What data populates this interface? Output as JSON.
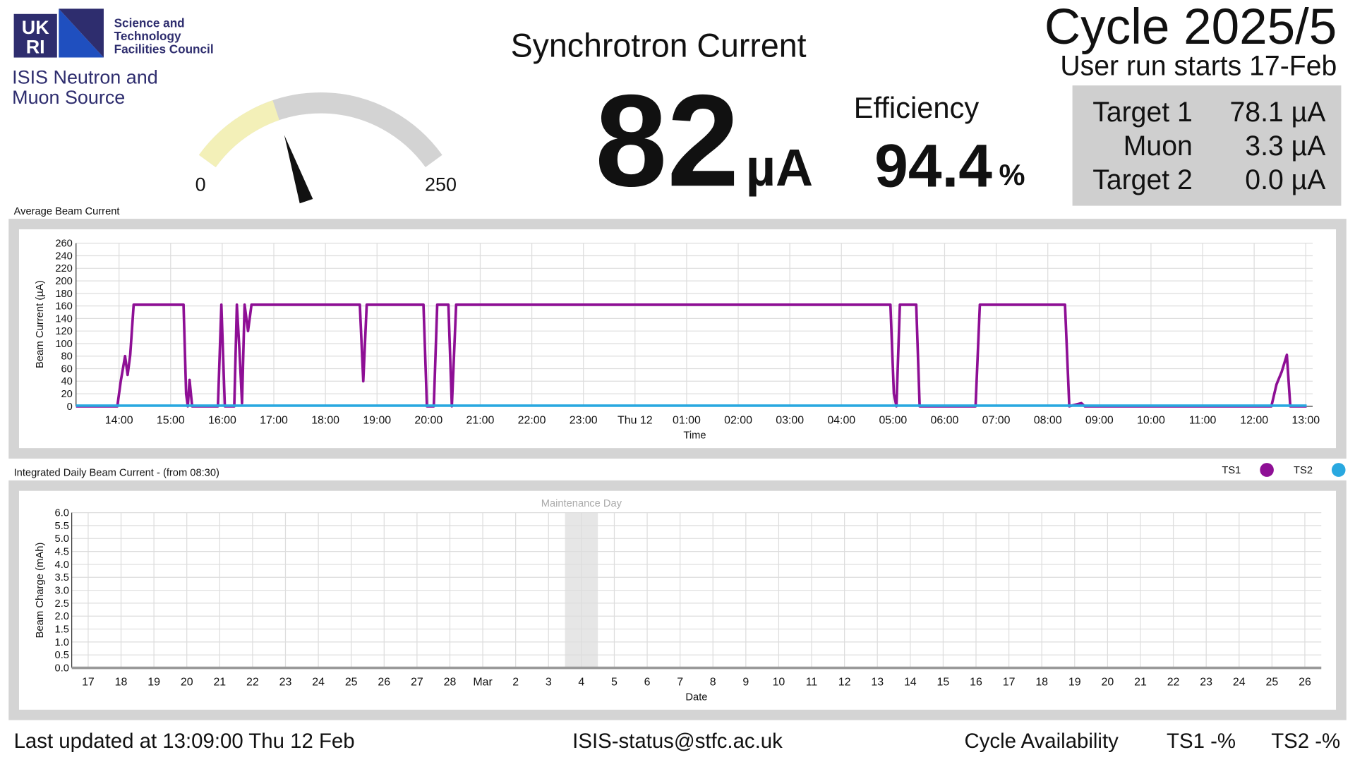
{
  "logo": {
    "mark_top": "UK",
    "mark_bottom": "RI",
    "council": [
      "Science and",
      "Technology",
      "Facilities Council"
    ],
    "source": [
      "ISIS Neutron and",
      "Muon Source"
    ]
  },
  "heading": "Synchrotron Current",
  "current": {
    "value": 82,
    "unit": "µA"
  },
  "gauge": {
    "min": 0,
    "max": 250
  },
  "efficiency": {
    "label": "Efficiency",
    "value": 94.4,
    "unit": "%"
  },
  "cycle": {
    "title": "Cycle 2025/5",
    "subtitle": "User run starts 17-Feb"
  },
  "targets": {
    "rows": [
      [
        "Target 1",
        "78.1 µA"
      ],
      [
        "Muon",
        "3.3 µA"
      ],
      [
        "Target 2",
        "0.0 µA"
      ]
    ]
  },
  "footer": {
    "updated": "Last updated at 13:09:00 Thu 12 Feb",
    "email": "ISIS-status@stfc.ac.uk",
    "availability": "Cycle Availability",
    "ts1": "TS1 -%",
    "ts2": "TS2 -%"
  },
  "chart_data": [
    {
      "type": "line",
      "title": "Average Beam Current",
      "x_label": "Time",
      "y_label": "Beam Current (µA)",
      "xlim": [
        "13:10",
        "13:08"
      ],
      "xticks": [
        "14:00",
        "15:00",
        "16:00",
        "17:00",
        "18:00",
        "19:00",
        "20:00",
        "21:00",
        "22:00",
        "23:00",
        {
          "value": "00:00",
          "label": "Thu 12"
        },
        "01:00",
        "02:00",
        "03:00",
        "04:00",
        "05:00",
        "06:00",
        "07:00",
        "08:00",
        "09:00",
        "10:00",
        "11:00",
        "12:00",
        "13:00"
      ],
      "ylim": [
        0,
        260
      ],
      "yticks": [
        0,
        20,
        40,
        60,
        80,
        100,
        120,
        140,
        160,
        180,
        200,
        220,
        240,
        260
      ],
      "grid": true,
      "series": [
        {
          "name": "TS1",
          "color": "#8e0f95",
          "x": [
            "13:10",
            "13:58",
            "14:02",
            "14:07",
            "14:10",
            "14:13",
            "14:17",
            "15:15",
            "15:18",
            "15:20",
            "15:22",
            "15:25",
            "15:55",
            "15:59",
            "16:03",
            "16:14",
            "16:17",
            "16:20",
            "16:23",
            "16:26",
            "16:30",
            "16:34",
            "16:42",
            "18:40",
            "18:44",
            "18:48",
            "19:54",
            "19:58",
            "20:06",
            "20:10",
            "20:23",
            "20:27",
            "20:32",
            "04:57",
            "05:01",
            "05:04",
            "05:08",
            "05:27",
            "05:31",
            "06:36",
            "06:41",
            "08:20",
            "08:25",
            "08:39",
            "08:43",
            "12:20",
            "12:26",
            "12:32",
            "12:38",
            "12:42",
            "13:01"
          ],
          "values": [
            0,
            0,
            40,
            80,
            50,
            82,
            162,
            162,
            20,
            0,
            42,
            0,
            0,
            162,
            0,
            0,
            162,
            90,
            5,
            162,
            120,
            162,
            162,
            162,
            40,
            162,
            162,
            0,
            0,
            162,
            162,
            0,
            162,
            162,
            20,
            0,
            162,
            162,
            0,
            0,
            162,
            162,
            0,
            5,
            0,
            0,
            35,
            55,
            82,
            0,
            0
          ]
        },
        {
          "name": "TS2",
          "color": "#29a8e0",
          "x": [
            "13:10",
            "13:01"
          ],
          "values": [
            1,
            1
          ]
        }
      ]
    },
    {
      "type": "bar",
      "title": "Integrated Daily Beam Current - (from 08:30)",
      "x_label": "Date",
      "y_label": "Beam Charge (mAh)",
      "categories": [
        "17",
        "18",
        "19",
        "20",
        "21",
        "22",
        "23",
        "24",
        "25",
        "26",
        "27",
        "28",
        "Mar",
        "2",
        "3",
        "4",
        "5",
        "6",
        "7",
        "8",
        "9",
        "10",
        "11",
        "12",
        "13",
        "14",
        "15",
        "16",
        "17",
        "18",
        "19",
        "20",
        "21",
        "22",
        "23",
        "24",
        "25",
        "26"
      ],
      "ylim": [
        0,
        6
      ],
      "yticks": [
        {
          "value": 0,
          "label": "0.0"
        },
        0.5,
        {
          "value": 1,
          "label": "1.0"
        },
        1.5,
        {
          "value": 2,
          "label": "2.0"
        },
        2.5,
        {
          "value": 3,
          "label": "3.0"
        },
        3.5,
        {
          "value": 4,
          "label": "4.0"
        },
        4.5,
        {
          "value": 5,
          "label": "5.0"
        },
        5.5,
        {
          "value": 6,
          "label": "6.0"
        }
      ],
      "grid": true,
      "annotation": {
        "text": "Maintenance Day",
        "category": 15
      },
      "series": [
        {
          "name": "TS1",
          "color": "#8e0f95",
          "values": [
            null,
            null,
            null,
            null,
            null,
            null,
            null,
            null,
            null,
            null,
            null,
            null,
            null,
            null,
            null,
            null,
            null,
            null,
            null,
            null,
            null,
            null,
            null,
            null,
            null,
            null,
            null,
            null,
            null,
            null,
            null,
            null,
            null,
            null,
            null,
            null,
            null,
            null
          ]
        },
        {
          "name": "TS2",
          "color": "#29a8e0",
          "values": [
            null,
            null,
            null,
            null,
            null,
            null,
            null,
            null,
            null,
            null,
            null,
            null,
            null,
            null,
            null,
            null,
            null,
            null,
            null,
            null,
            null,
            null,
            null,
            null,
            null,
            null,
            null,
            null,
            null,
            null,
            null,
            null,
            null,
            null,
            null,
            null,
            null,
            null
          ]
        }
      ]
    }
  ]
}
